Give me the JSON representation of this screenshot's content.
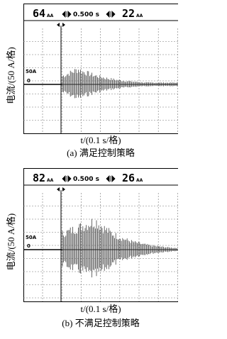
{
  "panels": [
    {
      "left_reading": "64",
      "left_unit": "AA",
      "timebase": "0.500 s",
      "right_reading": "22",
      "right_unit": "AA",
      "level_label": "50A",
      "zero_label": "0",
      "y_label": "电流/(50 A/格)",
      "x_label": "t/(0.1 s/格)",
      "caption": "(a) 满足控制策略"
    },
    {
      "left_reading": "82",
      "left_unit": "AA",
      "timebase": "0.500 s",
      "right_reading": "26",
      "right_unit": "AA",
      "level_label": "50A",
      "zero_label": "0",
      "y_label": "电流/(50 A/格)",
      "x_label": "t/(0.1 s/格)",
      "caption": "(b) 不满足控制策略"
    }
  ]
}
